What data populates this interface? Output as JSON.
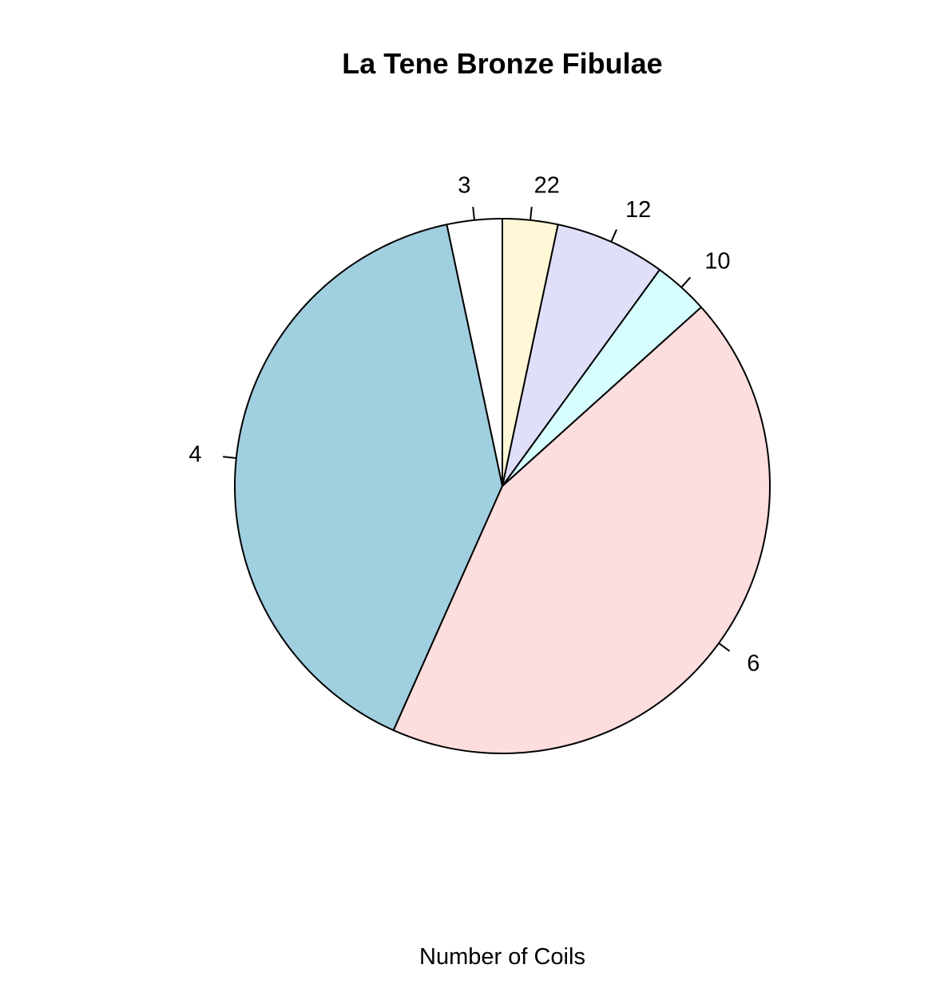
{
  "chart_data": {
    "type": "pie",
    "title": "La Tene Bronze Fibulae",
    "xlabel": "Number of Coils",
    "ylabel": "",
    "start_angle_deg": 90,
    "direction": "counterclockwise",
    "slices": [
      {
        "label": "3",
        "value": 1,
        "color": "#ffffff"
      },
      {
        "label": "4",
        "value": 12,
        "color": "#a0cfe0"
      },
      {
        "label": "6",
        "value": 13,
        "color": "#fddddd"
      },
      {
        "label": "10",
        "value": 1,
        "color": "#d7feff"
      },
      {
        "label": "12",
        "value": 2,
        "color": "#dfdff9"
      },
      {
        "label": "22",
        "value": 1,
        "color": "#fff7d6"
      }
    ],
    "border_color": "#000000"
  }
}
